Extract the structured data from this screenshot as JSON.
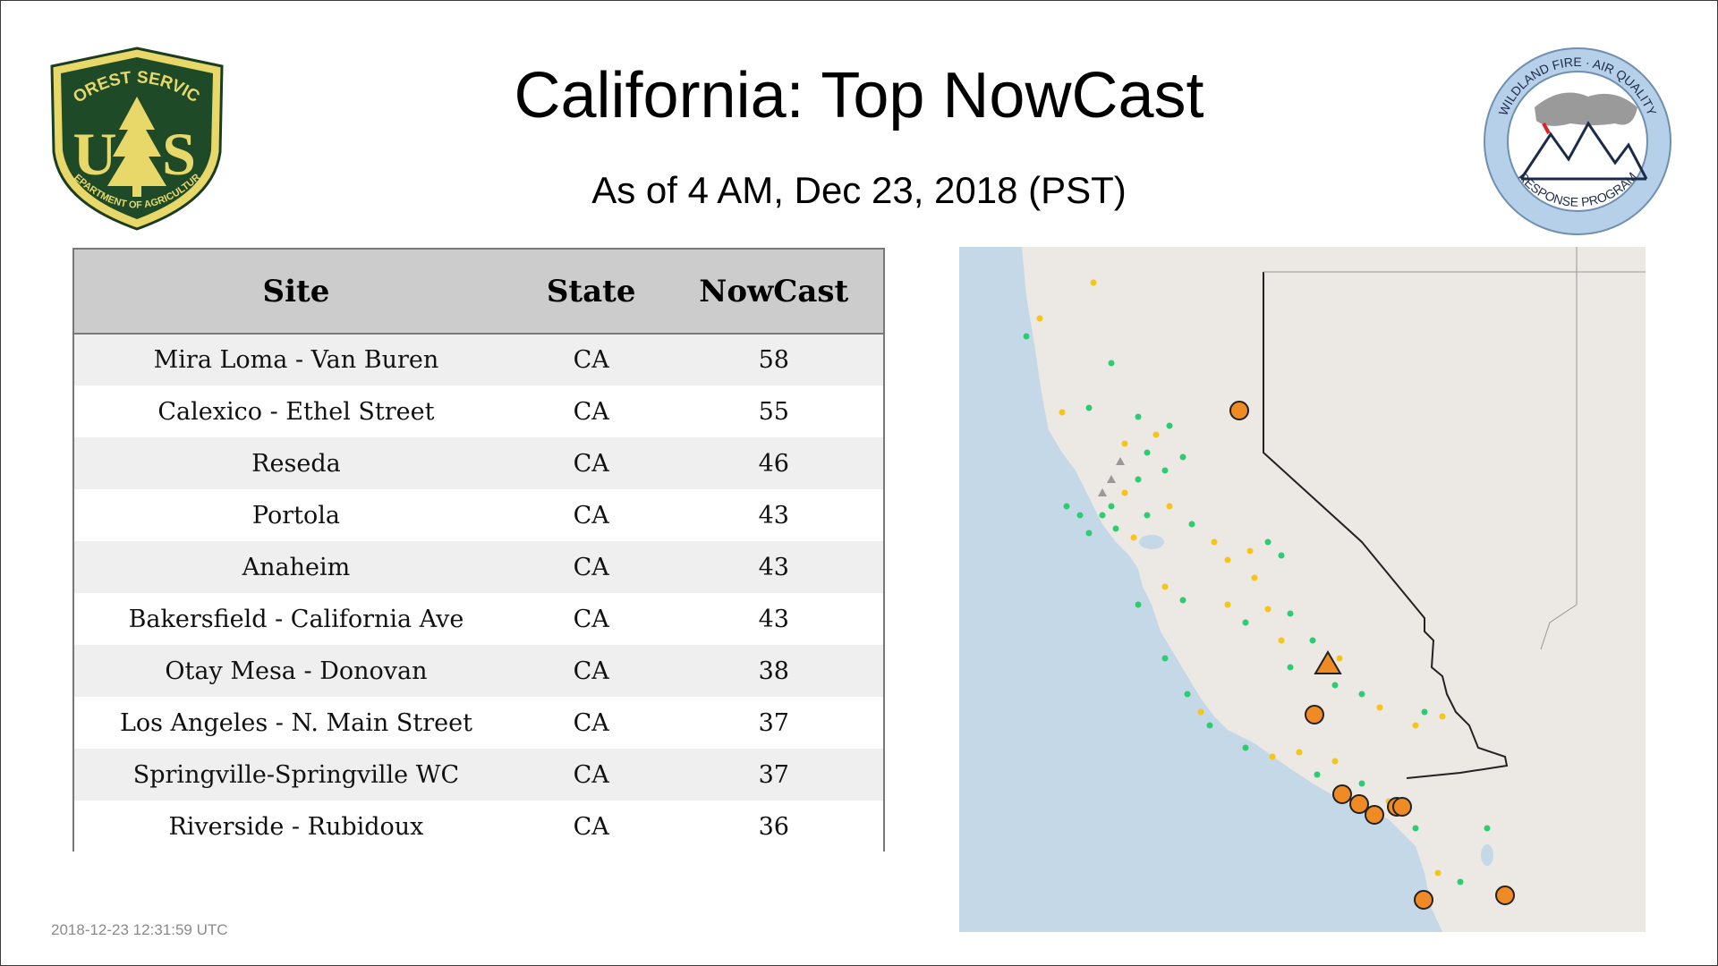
{
  "header": {
    "title": "California: Top NowCast",
    "subtitle": "As of  4 AM, Dec 23, 2018 (PST)"
  },
  "logos": {
    "forest_service": {
      "top_text": "FOREST SERVICE",
      "letters": "U S",
      "bottom_text": "DEPARTMENT OF AGRICULTURE"
    },
    "wildland": {
      "top_text": "WILDLAND FIRE · AIR QUALITY",
      "bottom_text": "RESPONSE PROGRAM"
    }
  },
  "table": {
    "headers": [
      "Site",
      "State",
      "NowCast"
    ],
    "rows": [
      {
        "site": "Mira Loma - Van Buren",
        "state": "CA",
        "nowcast": "58"
      },
      {
        "site": "Calexico - Ethel Street",
        "state": "CA",
        "nowcast": "55"
      },
      {
        "site": "Reseda",
        "state": "CA",
        "nowcast": "46"
      },
      {
        "site": "Portola",
        "state": "CA",
        "nowcast": "43"
      },
      {
        "site": "Anaheim",
        "state": "CA",
        "nowcast": "43"
      },
      {
        "site": "Bakersfield - California Ave",
        "state": "CA",
        "nowcast": "43"
      },
      {
        "site": "Otay Mesa - Donovan",
        "state": "CA",
        "nowcast": "38"
      },
      {
        "site": "Los Angeles - N. Main Street",
        "state": "CA",
        "nowcast": "37"
      },
      {
        "site": "Springville-Springville WC",
        "state": "CA",
        "nowcast": "37"
      },
      {
        "site": "Riverside - Rubidoux",
        "state": "CA",
        "nowcast": "36"
      }
    ]
  },
  "footer": {
    "timestamp": "2018-12-23 12:31:59 UTC"
  },
  "map": {
    "colors": {
      "good": "#2ecc71",
      "moderate": "#f5c518",
      "usg": "#f08a24",
      "no_data": "#999999",
      "ocean": "#c4d8e8",
      "land": "#ede9e6"
    }
  }
}
